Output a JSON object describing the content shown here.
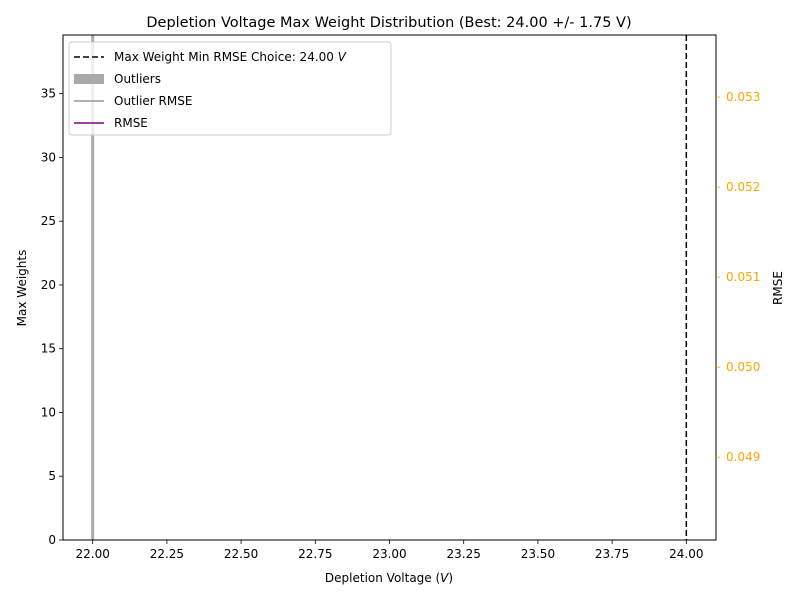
{
  "chart_data": {
    "type": "bar",
    "title": "Depletion Voltage Max Weight Distribution (Best: 24.00 +/- 1.75 V)",
    "xlabel": "Depletion Voltage (V)",
    "ylabel": "Max Weights",
    "y2label": "RMSE",
    "xlim": [
      21.9,
      24.1
    ],
    "ylim": [
      0,
      39.6
    ],
    "y2lim": [
      0.04808,
      0.05369
    ],
    "x_ticks": [
      "22.00",
      "22.25",
      "22.50",
      "22.75",
      "23.00",
      "23.25",
      "23.50",
      "23.75",
      "24.00"
    ],
    "y_ticks": [
      "0",
      "5",
      "10",
      "15",
      "20",
      "25",
      "30",
      "35"
    ],
    "y2_ticks": [
      "0.049",
      "0.050",
      "0.051",
      "0.052",
      "0.053"
    ],
    "y2_tick_values": [
      0.049,
      0.05,
      0.051,
      0.052,
      0.053
    ],
    "outlier_bars": [
      {
        "x": 22.0,
        "value": 39.6
      }
    ],
    "best_choice_x": 24.0,
    "legend": [
      {
        "label": "Max Weight Min RMSE Choice: 24.00 V",
        "style": "dashed-line",
        "color": "#000000"
      },
      {
        "label": "Outliers",
        "style": "patch",
        "color": "#aaaaaa"
      },
      {
        "label": "Outlier RMSE",
        "style": "line",
        "color": "#999999"
      },
      {
        "label": "RMSE",
        "style": "line",
        "color": "#800080"
      }
    ],
    "legend_position": "upper-left",
    "colors": {
      "axis": "#000000",
      "y2_axis": "#ffa500",
      "outlier_bar": "#aaaaaa",
      "outlier_line": "#999999",
      "rmse_line": "#800080"
    }
  }
}
